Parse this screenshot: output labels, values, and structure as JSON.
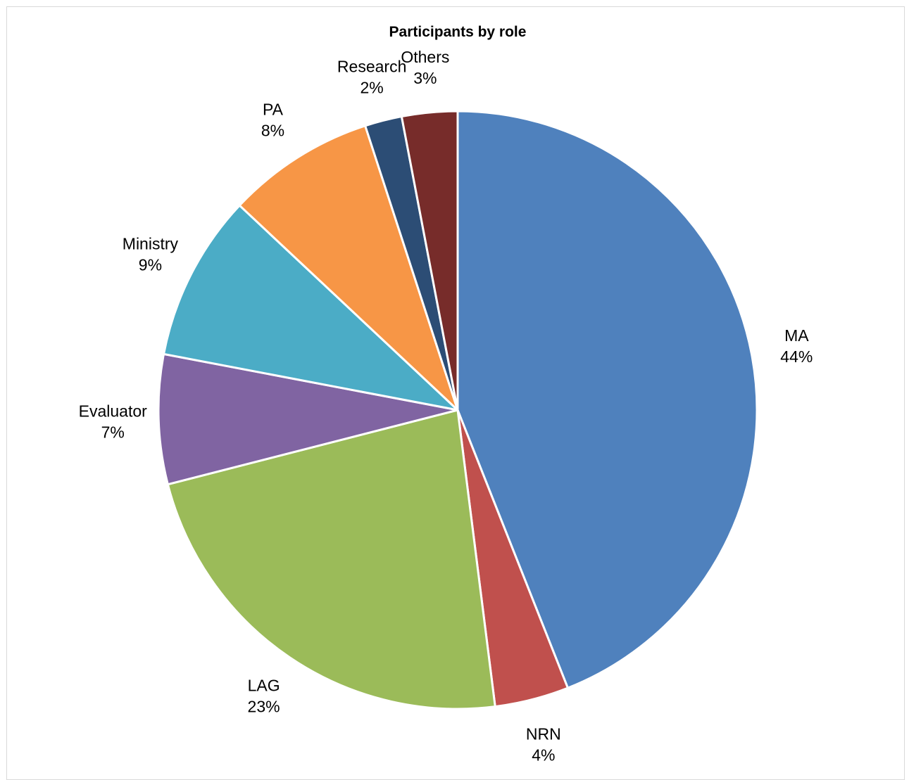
{
  "chart_data": {
    "type": "pie",
    "title": "Participants by role",
    "start_angle_deg": 0,
    "direction": "clockwise",
    "legend": "none",
    "slices": [
      {
        "label": "MA",
        "value": 44,
        "value_label": "44%",
        "color": "#4F81BD"
      },
      {
        "label": "NRN",
        "value": 4,
        "value_label": "4%",
        "color": "#C0504D"
      },
      {
        "label": "LAG",
        "value": 23,
        "value_label": "23%",
        "color": "#9BBB59"
      },
      {
        "label": "Evaluator",
        "value": 7,
        "value_label": "7%",
        "color": "#8064A2"
      },
      {
        "label": "Ministry",
        "value": 9,
        "value_label": "9%",
        "color": "#4BACC6"
      },
      {
        "label": "PA",
        "value": 8,
        "value_label": "8%",
        "color": "#F79646"
      },
      {
        "label": "Research",
        "value": 2,
        "value_label": "2%",
        "color": "#2C4D75"
      },
      {
        "label": "Others",
        "value": 3,
        "value_label": "3%",
        "color": "#772C2A"
      }
    ]
  }
}
